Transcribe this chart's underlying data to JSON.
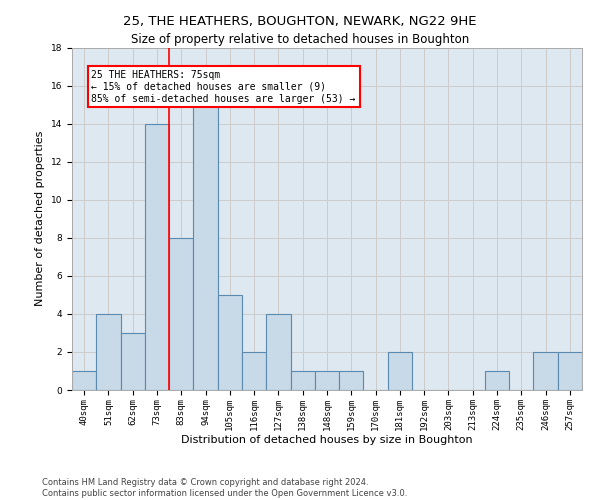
{
  "title": "25, THE HEATHERS, BOUGHTON, NEWARK, NG22 9HE",
  "subtitle": "Size of property relative to detached houses in Boughton",
  "xlabel": "Distribution of detached houses by size in Boughton",
  "ylabel": "Number of detached properties",
  "bar_labels": [
    "40sqm",
    "51sqm",
    "62sqm",
    "73sqm",
    "83sqm",
    "94sqm",
    "105sqm",
    "116sqm",
    "127sqm",
    "138sqm",
    "148sqm",
    "159sqm",
    "170sqm",
    "181sqm",
    "192sqm",
    "203sqm",
    "213sqm",
    "224sqm",
    "235sqm",
    "246sqm",
    "257sqm"
  ],
  "bar_values": [
    1,
    4,
    3,
    14,
    8,
    15,
    5,
    2,
    4,
    1,
    1,
    1,
    0,
    2,
    0,
    0,
    0,
    1,
    0,
    2,
    2
  ],
  "bar_color": "#c8d9e8",
  "bar_edge_color": "#5a8ab0",
  "bar_linewidth": 0.8,
  "red_line_x": 3.5,
  "annotation_line1": "25 THE HEATHERS: 75sqm",
  "annotation_line2": "← 15% of detached houses are smaller (9)",
  "annotation_line3": "85% of semi-detached houses are larger (53) →",
  "annotation_box_color": "white",
  "annotation_box_edge_color": "red",
  "red_line_color": "red",
  "ylim": [
    0,
    18
  ],
  "yticks": [
    0,
    2,
    4,
    6,
    8,
    10,
    12,
    14,
    16,
    18
  ],
  "grid_color": "#cccccc",
  "bg_color": "#dde8f0",
  "footer_line1": "Contains HM Land Registry data © Crown copyright and database right 2024.",
  "footer_line2": "Contains public sector information licensed under the Open Government Licence v3.0.",
  "title_fontsize": 9.5,
  "subtitle_fontsize": 8.5,
  "ylabel_fontsize": 8,
  "xlabel_fontsize": 8,
  "tick_fontsize": 6.5,
  "annotation_fontsize": 7,
  "footer_fontsize": 6
}
